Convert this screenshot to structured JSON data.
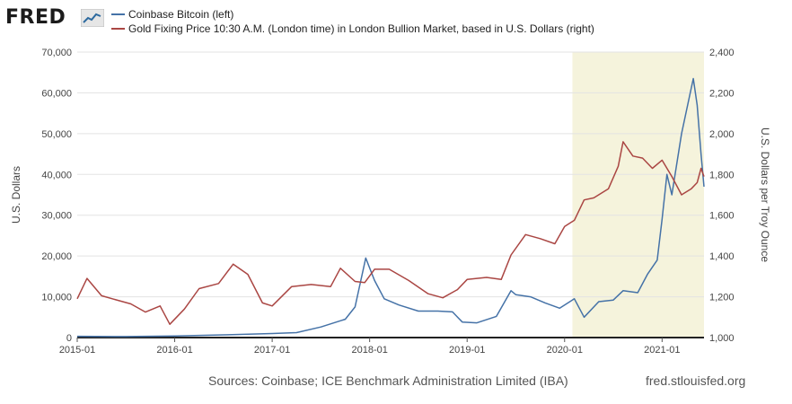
{
  "brand": {
    "logo_text": "FRED",
    "accent": "#2d6a9f"
  },
  "legend": [
    {
      "label": "Coinbase Bitcoin (left)",
      "color": "#4572a7"
    },
    {
      "label": "Gold Fixing Price 10:30 A.M. (London time) in London Bullion Market, based in U.S. Dollars (right)",
      "color": "#aa4643"
    }
  ],
  "footer": {
    "sources": "Sources: Coinbase; ICE Benchmark Administration Limited (IBA)",
    "url": "fred.stlouisfed.org"
  },
  "chart_data": {
    "type": "line",
    "x_ticks": [
      "2015-01",
      "2016-01",
      "2017-01",
      "2018-01",
      "2019-01",
      "2020-01",
      "2021-01"
    ],
    "x_range": [
      2015.0,
      2021.43
    ],
    "ylabel_left": "U.S. Dollars",
    "ylabel_right": "U.S. Dollars per Troy Ounce",
    "ylim_left": [
      0,
      70000
    ],
    "ylim_right": [
      1000,
      2400
    ],
    "y_ticks_left": [
      "0",
      "10,000",
      "20,000",
      "30,000",
      "40,000",
      "50,000",
      "60,000",
      "70,000"
    ],
    "y_ticks_right": [
      "1,000",
      "1,200",
      "1,400",
      "1,600",
      "1,800",
      "2,000",
      "2,200",
      "2,400"
    ],
    "grid": true,
    "recession_shading": {
      "start": 2020.08,
      "end": 2021.43,
      "color": "#f5f3dc"
    },
    "series": [
      {
        "name": "Coinbase Bitcoin (left)",
        "axis": "left",
        "color": "#4572a7",
        "x": [
          2015.0,
          2015.5,
          2016.0,
          2016.5,
          2017.0,
          2017.25,
          2017.5,
          2017.75,
          2017.85,
          2017.96,
          2018.05,
          2018.15,
          2018.3,
          2018.5,
          2018.7,
          2018.85,
          2018.95,
          2019.1,
          2019.3,
          2019.45,
          2019.5,
          2019.65,
          2019.8,
          2019.95,
          2020.1,
          2020.2,
          2020.35,
          2020.5,
          2020.6,
          2020.75,
          2020.85,
          2020.95,
          2021.0,
          2021.05,
          2021.1,
          2021.2,
          2021.28,
          2021.32,
          2021.36,
          2021.4,
          2021.43
        ],
        "values": [
          300,
          250,
          400,
          650,
          1000,
          1200,
          2600,
          4500,
          7500,
          19500,
          14000,
          9500,
          8000,
          6500,
          6500,
          6300,
          3800,
          3600,
          5200,
          11500,
          10500,
          10000,
          8500,
          7200,
          9500,
          5000,
          8800,
          9200,
          11500,
          11000,
          15500,
          19000,
          29000,
          40000,
          35000,
          50000,
          59000,
          63500,
          57000,
          45000,
          37000
        ]
      },
      {
        "name": "Gold Fixing Price 10:30 A.M. (London time) in London Bullion Market, based in U.S. Dollars (right)",
        "axis": "right",
        "color": "#aa4643",
        "x": [
          2015.0,
          2015.1,
          2015.25,
          2015.4,
          2015.55,
          2015.7,
          2015.85,
          2015.95,
          2016.1,
          2016.25,
          2016.45,
          2016.6,
          2016.75,
          2016.9,
          2017.0,
          2017.2,
          2017.4,
          2017.6,
          2017.7,
          2017.85,
          2017.95,
          2018.05,
          2018.2,
          2018.4,
          2018.6,
          2018.75,
          2018.9,
          2019.0,
          2019.2,
          2019.35,
          2019.45,
          2019.6,
          2019.75,
          2019.9,
          2020.0,
          2020.1,
          2020.2,
          2020.3,
          2020.45,
          2020.55,
          2020.6,
          2020.7,
          2020.8,
          2020.9,
          2021.0,
          2021.1,
          2021.2,
          2021.3,
          2021.36,
          2021.4,
          2021.43
        ],
        "values": [
          1190,
          1290,
          1205,
          1185,
          1165,
          1125,
          1155,
          1065,
          1140,
          1240,
          1265,
          1360,
          1310,
          1170,
          1155,
          1250,
          1260,
          1250,
          1340,
          1275,
          1270,
          1335,
          1335,
          1280,
          1215,
          1195,
          1235,
          1285,
          1295,
          1285,
          1405,
          1505,
          1485,
          1460,
          1545,
          1575,
          1675,
          1685,
          1730,
          1840,
          1960,
          1890,
          1880,
          1830,
          1870,
          1790,
          1700,
          1730,
          1760,
          1830,
          1790
        ]
      }
    ]
  }
}
